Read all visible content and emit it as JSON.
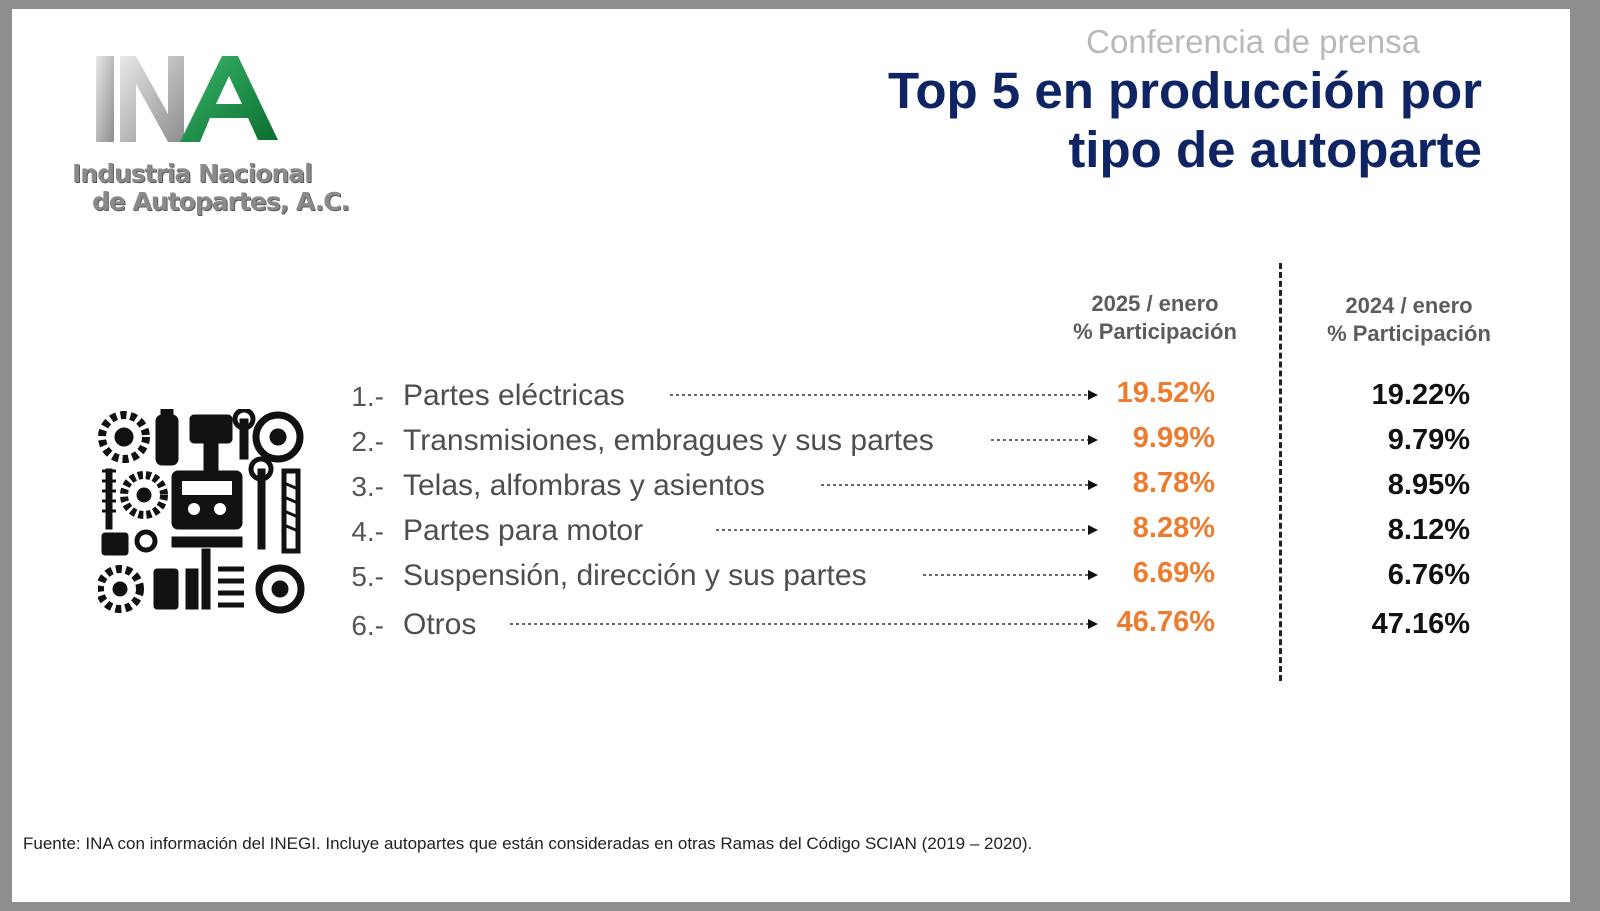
{
  "header": {
    "subtitle": "Conferencia de prensa",
    "title_line1": "Top 5 en producción por",
    "title_line2": "tipo de autoparte"
  },
  "logo": {
    "mark": "INA",
    "name_line1": "Industria Nacional",
    "name_line2": "de Autopartes, A.C.",
    "colors": {
      "green": "#0f8a3c",
      "gray": "#b9b9b9"
    }
  },
  "columns": {
    "col2025_line1": "2025 / enero",
    "col2025_line2": "% Participación",
    "col2024_line1": "2024 / enero",
    "col2024_line2": "% Participación"
  },
  "rows": [
    {
      "rank": "1.-",
      "label": "Partes eléctricas",
      "v2025": "19.52%",
      "v2024": "19.22%"
    },
    {
      "rank": "2.-",
      "label": "Transmisiones, embragues y sus partes",
      "v2025": "9.99%",
      "v2024": "9.79%"
    },
    {
      "rank": "3.-",
      "label": "Telas, alfombras y asientos",
      "v2025": "8.78%",
      "v2024": "8.95%"
    },
    {
      "rank": "4.-",
      "label": "Partes para motor",
      "v2025": "8.28%",
      "v2024": "8.12%"
    },
    {
      "rank": "5.-",
      "label": "Suspensión, dirección y sus partes",
      "v2025": "6.69%",
      "v2024": "6.76%"
    },
    {
      "rank": "6.-",
      "label": "Otros",
      "v2025": "46.76%",
      "v2024": "47.16%"
    }
  ],
  "illustration": {
    "icon": "auto-parts-collage-icon"
  },
  "footer": {
    "source": "Fuente: INA con información del INEGI. Incluye autopartes que están consideradas en otras Ramas del Código SCIAN (2019 – 2020)."
  },
  "colors": {
    "title": "#0e2463",
    "highlight": "#ec7c2f",
    "text": "#4e4e4e"
  }
}
